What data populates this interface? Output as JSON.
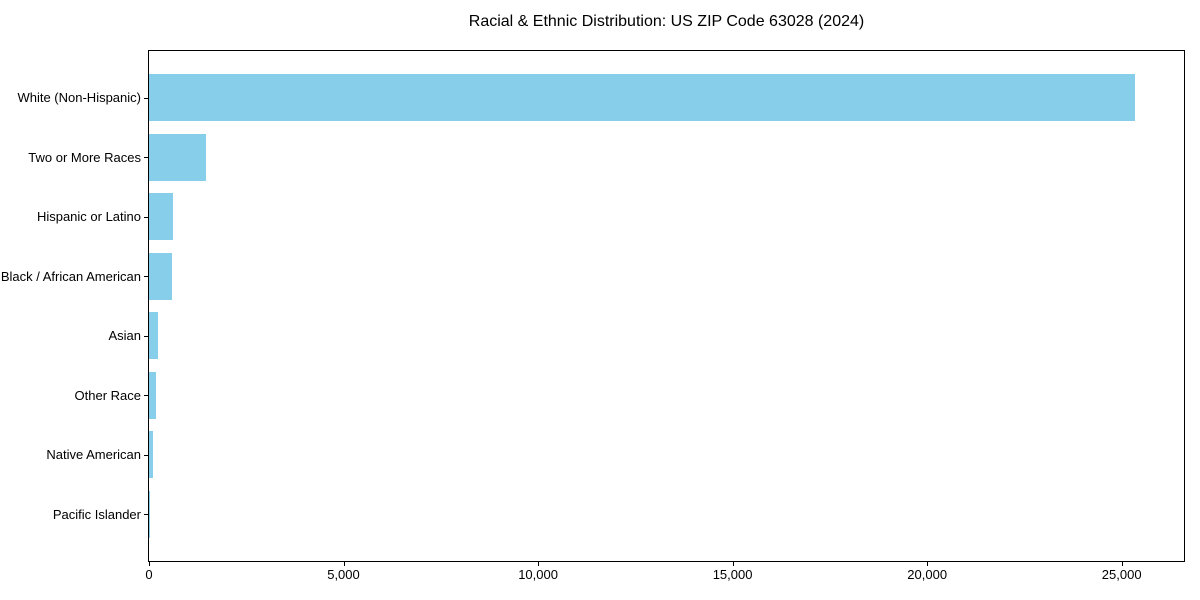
{
  "chart_data": {
    "type": "bar",
    "orientation": "horizontal",
    "title": "Racial & Ethnic Distribution: US ZIP Code 63028 (2024)",
    "categories": [
      "White (Non-Hispanic)",
      "Two or More Races",
      "Hispanic or Latino",
      "Black / African American",
      "Asian",
      "Other Race",
      "Native American",
      "Pacific Islander"
    ],
    "values": [
      25330,
      1470,
      610,
      590,
      230,
      190,
      100,
      10
    ],
    "xlabel": "",
    "ylabel": "",
    "xlim": [
      0,
      26600
    ],
    "xticks": [
      0,
      5000,
      10000,
      15000,
      20000,
      25000
    ],
    "xtick_labels": [
      "0",
      "5,000",
      "10,000",
      "15,000",
      "20,000",
      "25,000"
    ],
    "bar_color": "#87CEEB",
    "spine_color": "#000000",
    "text_color": "#000000",
    "background_color": "#ffffff",
    "grid": false,
    "legend": null
  }
}
